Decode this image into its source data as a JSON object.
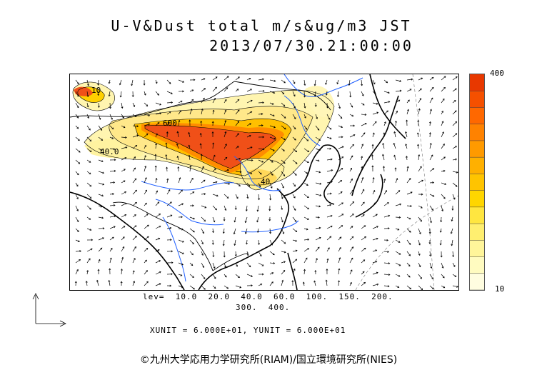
{
  "header": {
    "title": "U-V&Dust total m/s&ug/m3 JST",
    "datetime": "2013/07/30.21:00:00"
  },
  "legend": {
    "max_label": "400",
    "min_label": "10",
    "colors": [
      "#fffde0",
      "#fffbc0",
      "#fff59a",
      "#ffef70",
      "#ffe640",
      "#ffd600",
      "#ffc400",
      "#ffb000",
      "#ff9a00",
      "#ff8200",
      "#ff6800",
      "#f55000",
      "#e83800"
    ]
  },
  "contour_labels": [
    "10",
    "40",
    "40.0",
    "600"
  ],
  "contour_levels_line1": "lev=  10.0  20.0  40.0  60.0  100.  150.  200.",
  "contour_levels_line2": "300.  400.",
  "units_line": "XUNIT = 6.000E+01, YUNIT = 6.000E+01",
  "copyright": "©九州大学応用力学研究所(RIAM)/国立環境研究所(NIES)",
  "colors": {
    "dust_high": "#f05018",
    "dust_mid": "#ffc000",
    "dust_low": "#fff5b0",
    "rivers": "#2060ff",
    "coast": "#000000"
  }
}
